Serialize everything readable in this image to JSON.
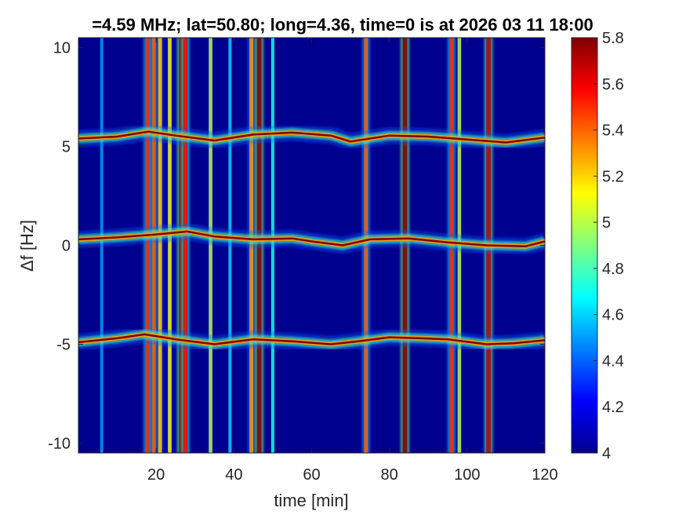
{
  "chart_data": {
    "type": "heatmap",
    "title": "=4.59 MHz;  lat=50.80; long=4.36, time=0 is at 2026 03 11 18:00",
    "xlabel": "time [min]",
    "ylabel": "Δf [Hz]",
    "xlim": [
      0,
      120
    ],
    "ylim": [
      -10.5,
      10.5
    ],
    "xticks": [
      20,
      40,
      60,
      80,
      100,
      120
    ],
    "yticks": [
      -10,
      -5,
      0,
      5,
      10
    ],
    "colorbar": {
      "colormap": "jet",
      "clim": [
        4,
        5.8
      ],
      "ticks": [
        4,
        4.2,
        4.4,
        4.6,
        4.8,
        5,
        5.2,
        5.4,
        5.6,
        5.8
      ]
    },
    "background_color": "#00008f",
    "carrier_lines": [
      {
        "center_hz": 5.4,
        "points": [
          [
            0,
            5.4
          ],
          [
            10,
            5.5
          ],
          [
            18,
            5.75
          ],
          [
            25,
            5.55
          ],
          [
            35,
            5.3
          ],
          [
            45,
            5.6
          ],
          [
            55,
            5.7
          ],
          [
            65,
            5.55
          ],
          [
            70,
            5.25
          ],
          [
            80,
            5.55
          ],
          [
            90,
            5.5
          ],
          [
            100,
            5.35
          ],
          [
            110,
            5.2
          ],
          [
            120,
            5.45
          ]
        ]
      },
      {
        "center_hz": 0.3,
        "points": [
          [
            0,
            0.3
          ],
          [
            10,
            0.4
          ],
          [
            20,
            0.55
          ],
          [
            28,
            0.7
          ],
          [
            35,
            0.45
          ],
          [
            45,
            0.3
          ],
          [
            55,
            0.35
          ],
          [
            60,
            0.2
          ],
          [
            68,
            0.0
          ],
          [
            75,
            0.3
          ],
          [
            85,
            0.35
          ],
          [
            95,
            0.15
          ],
          [
            105,
            0.0
          ],
          [
            115,
            -0.05
          ],
          [
            120,
            0.2
          ]
        ]
      },
      {
        "center_hz": -4.8,
        "points": [
          [
            0,
            -4.9
          ],
          [
            10,
            -4.7
          ],
          [
            17,
            -4.5
          ],
          [
            25,
            -4.75
          ],
          [
            35,
            -5.0
          ],
          [
            45,
            -4.75
          ],
          [
            55,
            -4.85
          ],
          [
            65,
            -5.0
          ],
          [
            72,
            -4.85
          ],
          [
            80,
            -4.65
          ],
          [
            88,
            -4.7
          ],
          [
            95,
            -4.75
          ],
          [
            105,
            -5.0
          ],
          [
            112,
            -4.95
          ],
          [
            120,
            -4.8
          ]
        ]
      }
    ],
    "vertical_bursts": [
      {
        "t": 6,
        "level": 4.5
      },
      {
        "t": 17.8,
        "level": 5.5
      },
      {
        "t": 19.5,
        "level": 5.4
      },
      {
        "t": 21,
        "level": 5.2
      },
      {
        "t": 23.5,
        "level": 5.1
      },
      {
        "t": 26.5,
        "level": 5.8
      },
      {
        "t": 27.5,
        "level": 5.6
      },
      {
        "t": 34,
        "level": 5.0
      },
      {
        "t": 39,
        "level": 4.6
      },
      {
        "t": 44.5,
        "level": 5.3
      },
      {
        "t": 46.5,
        "level": 5.8
      },
      {
        "t": 50,
        "level": 4.7
      },
      {
        "t": 74,
        "level": 5.4
      },
      {
        "t": 84,
        "level": 5.8
      },
      {
        "t": 96,
        "level": 5.5
      },
      {
        "t": 98,
        "level": 5.0
      },
      {
        "t": 105.5,
        "level": 5.7
      }
    ]
  }
}
